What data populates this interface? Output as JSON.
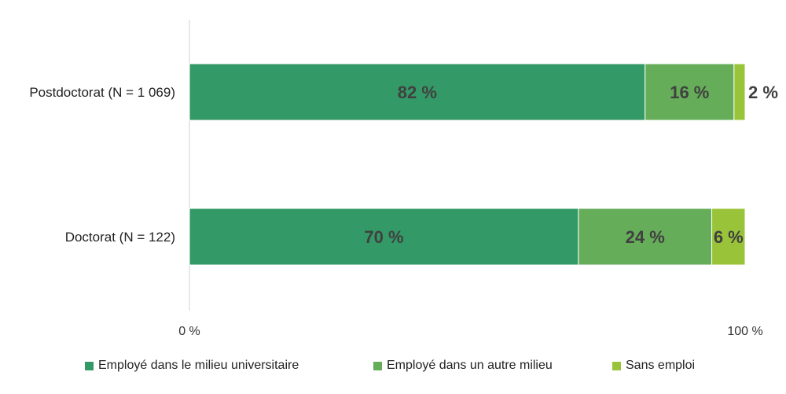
{
  "chart_data": {
    "type": "bar",
    "orientation": "horizontal",
    "stacked": true,
    "categories": [
      "Postdoctorat (N = 1 069)",
      "Doctorat (N = 122)"
    ],
    "series": [
      {
        "name": "Employé dans le milieu universitaire",
        "values": [
          82,
          70
        ],
        "labels": [
          "82 %",
          "70 %"
        ],
        "color": "#339966"
      },
      {
        "name": "Employé dans un autre milieu",
        "values": [
          16,
          24
        ],
        "labels": [
          "16 %",
          "24 %"
        ],
        "color": "#66ad5a"
      },
      {
        "name": "Sans emploi",
        "values": [
          2,
          6
        ],
        "labels": [
          "2 %",
          "6 %"
        ],
        "color": "#99c43a"
      }
    ],
    "xlim": [
      0,
      100
    ],
    "xticks": [
      "0 %",
      "100 %"
    ],
    "title": "",
    "xlabel": "",
    "ylabel": "",
    "grid": false,
    "legend_position": "bottom"
  }
}
